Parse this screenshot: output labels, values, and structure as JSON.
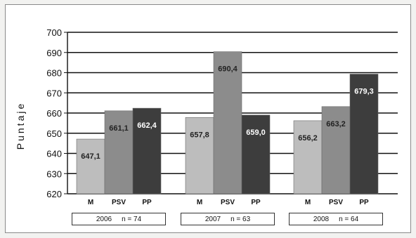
{
  "chart_data": {
    "type": "bar",
    "ylabel": "Puntaje",
    "ylim": [
      620,
      700
    ],
    "yticks": [
      "620",
      "630",
      "640",
      "650",
      "660",
      "670",
      "680",
      "690",
      "700"
    ],
    "grid": true,
    "groups": [
      {
        "year": "2006",
        "n": "n = 74",
        "bars": [
          {
            "category": "M",
            "value": 647.1,
            "label": "647,1"
          },
          {
            "category": "PSV",
            "value": 661.1,
            "label": "661,1"
          },
          {
            "category": "PP",
            "value": 662.4,
            "label": "662,4"
          }
        ]
      },
      {
        "year": "2007",
        "n": "n = 63",
        "bars": [
          {
            "category": "M",
            "value": 657.8,
            "label": "657,8"
          },
          {
            "category": "PSV",
            "value": 690.4,
            "label": "690,4"
          },
          {
            "category": "PP",
            "value": 659.0,
            "label": "659,0"
          }
        ]
      },
      {
        "year": "2008",
        "n": "n = 64",
        "bars": [
          {
            "category": "M",
            "value": 656.2,
            "label": "656,2"
          },
          {
            "category": "PSV",
            "value": 663.2,
            "label": "663,2"
          },
          {
            "category": "PP",
            "value": 679.3,
            "label": "679,3"
          }
        ]
      }
    ],
    "colors": {
      "M": "#bdbdbd",
      "PSV": "#8c8c8c",
      "PP": "#3d3d3d"
    },
    "label_colors": {
      "M": "#222222",
      "PSV": "#222222",
      "PP": "#ffffff"
    }
  }
}
